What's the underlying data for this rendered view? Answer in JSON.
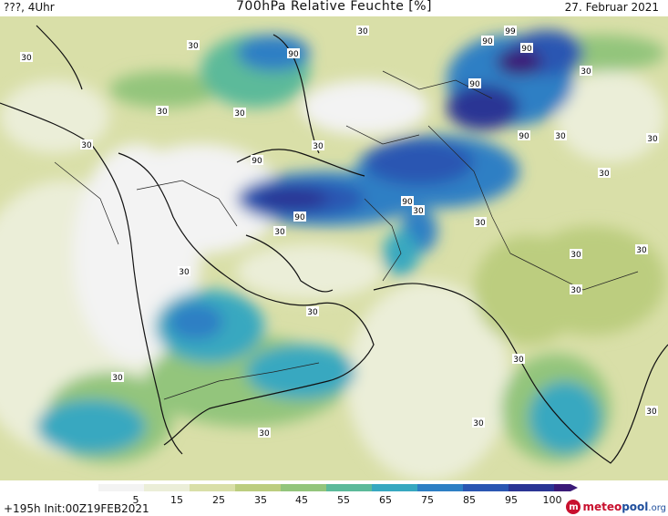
{
  "header": {
    "left": "???, 4Uhr",
    "title": "700hPa Relative Feuchte [%]",
    "date": "27. Februar 2021"
  },
  "legend": {
    "ticks": [
      "5",
      "15",
      "25",
      "35",
      "45",
      "55",
      "65",
      "75",
      "85",
      "95",
      "100"
    ],
    "colors": [
      "#f3f3f3",
      "#ebeed8",
      "#d9dfa8",
      "#bccd7f",
      "#93c57c",
      "#5cba9a",
      "#37a8c0",
      "#2d7fc4",
      "#2a56b2",
      "#2a3594",
      "#3a1a78"
    ]
  },
  "footer": {
    "run": "+195h Init:00Z19FEB2021",
    "logo_meteo": "meteo",
    "logo_pool": "pool",
    "logo_org": ".org"
  },
  "contour_labels": [
    "30",
    "30",
    "30",
    "30",
    "30",
    "30",
    "30",
    "30",
    "30",
    "30",
    "30",
    "30",
    "30",
    "30",
    "30",
    "30",
    "30",
    "30",
    "30",
    "30",
    "30",
    "30",
    "30",
    "30",
    "90",
    "90",
    "90",
    "90",
    "90",
    "90",
    "90",
    "90",
    "99"
  ]
}
